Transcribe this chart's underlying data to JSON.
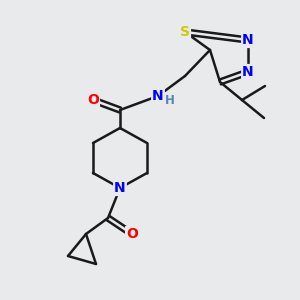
{
  "bg_color": "#e8eaec",
  "bond_color": "#1a1a1a",
  "bond_width": 1.8,
  "atom_colors": {
    "N": "#0000ff",
    "O": "#ff0000",
    "S": "#cccc00",
    "H": "#5588aa",
    "C": "#1a1a1a"
  },
  "font_size_atom": 10,
  "font_size_small": 8.5
}
